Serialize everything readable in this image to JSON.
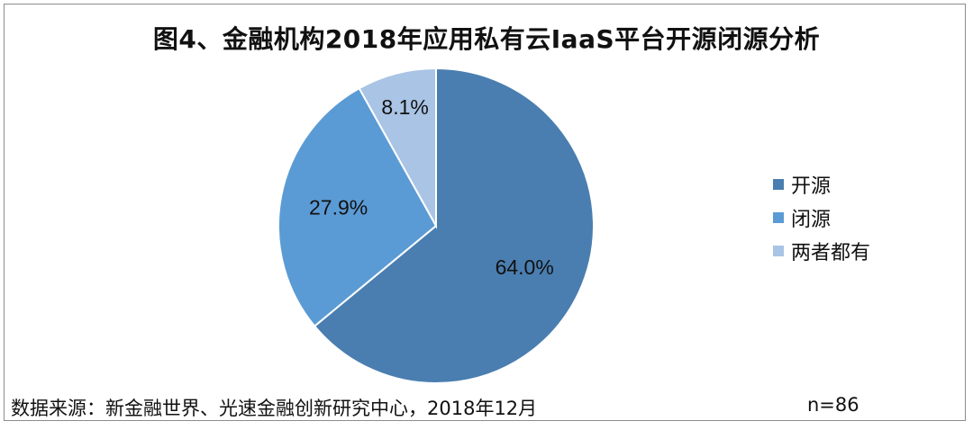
{
  "title": "图4、金融机构2018年应用私有云IaaS平台开源闭源分析",
  "source": "数据来源：新金融世界、光速金融创新研究中心，2018年12月",
  "sample_size": "n=86",
  "chart_data": {
    "type": "pie",
    "title": "图4、金融机构2018年应用私有云IaaS平台开源闭源分析",
    "categories": [
      "开源",
      "闭源",
      "两者都有"
    ],
    "values": [
      64.0,
      27.9,
      8.1
    ],
    "data_labels": [
      "64.0%",
      "27.9%",
      "8.1%"
    ],
    "colors": [
      "#4a7eb0",
      "#5b9bd5",
      "#a9c4e4"
    ],
    "start_angle_deg": 0,
    "direction": "clockwise",
    "legend_position": "right"
  }
}
